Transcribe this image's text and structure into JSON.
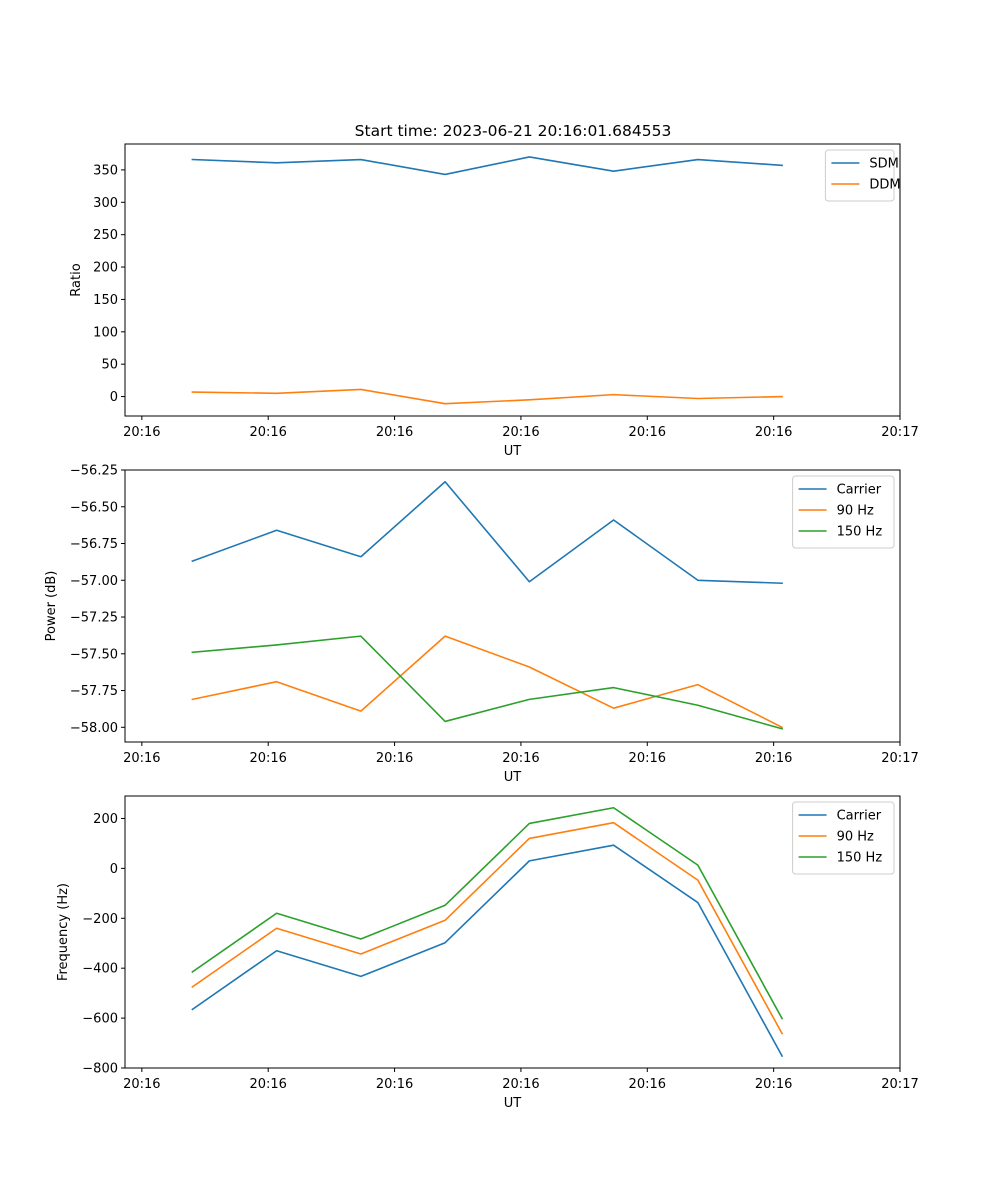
{
  "figure": {
    "title": "Start time: 2023-06-21 20:16:01.684553"
  },
  "colors": {
    "blue": "#1f77b4",
    "orange": "#ff7f0e",
    "green": "#2ca02c"
  },
  "chart_data": [
    {
      "type": "line",
      "title": "Start time: 2023-06-21 20:16:01.684553",
      "xlabel": "UT",
      "ylabel": "Ratio",
      "x": [
        1,
        2,
        3,
        4,
        5,
        6,
        7,
        8
      ],
      "xlim": [
        0.2,
        9.4
      ],
      "xticks": [
        0.4,
        1.9,
        3.4,
        4.9,
        6.4,
        7.9,
        9.4
      ],
      "xtick_labels": [
        "20:16",
        "20:16",
        "20:16",
        "20:16",
        "20:16",
        "20:16",
        "20:17"
      ],
      "ylim": [
        -30,
        390
      ],
      "yticks": [
        0,
        50,
        100,
        150,
        200,
        250,
        300,
        350
      ],
      "ytick_labels": [
        "0",
        "50",
        "100",
        "150",
        "200",
        "250",
        "300",
        "350"
      ],
      "legend": "top-right",
      "grid": false,
      "series": [
        {
          "name": "SDM",
          "color": "#1f77b4",
          "values": [
            366,
            361,
            366,
            343,
            370,
            348,
            366,
            357
          ]
        },
        {
          "name": "DDM",
          "color": "#ff7f0e",
          "values": [
            7,
            5,
            11,
            -11,
            -5,
            3,
            -3,
            0
          ]
        }
      ]
    },
    {
      "type": "line",
      "xlabel": "UT",
      "ylabel": "Power (dB)",
      "x": [
        1,
        2,
        3,
        4,
        5,
        6,
        7,
        8
      ],
      "xlim": [
        0.2,
        9.4
      ],
      "xticks": [
        0.4,
        1.9,
        3.4,
        4.9,
        6.4,
        7.9,
        9.4
      ],
      "xtick_labels": [
        "20:16",
        "20:16",
        "20:16",
        "20:16",
        "20:16",
        "20:16",
        "20:17"
      ],
      "ylim": [
        -58.1,
        -56.25
      ],
      "yticks": [
        -58.0,
        -57.75,
        -57.5,
        -57.25,
        -57.0,
        -56.75,
        -56.5,
        -56.25
      ],
      "ytick_labels": [
        "−58.00",
        "−57.75",
        "−57.50",
        "−57.25",
        "−57.00",
        "−56.75",
        "−56.50",
        "−56.25"
      ],
      "legend": "top-right",
      "grid": false,
      "series": [
        {
          "name": "Carrier",
          "color": "#1f77b4",
          "values": [
            -56.87,
            -56.66,
            -56.84,
            -56.33,
            -57.01,
            -56.59,
            -57.0,
            -57.02
          ]
        },
        {
          "name": "90 Hz",
          "color": "#ff7f0e",
          "values": [
            -57.81,
            -57.69,
            -57.89,
            -57.38,
            -57.59,
            -57.87,
            -57.71,
            -58.0
          ]
        },
        {
          "name": "150 Hz",
          "color": "#2ca02c",
          "values": [
            -57.49,
            -57.44,
            -57.38,
            -57.96,
            -57.81,
            -57.73,
            -57.85,
            -58.01
          ]
        }
      ]
    },
    {
      "type": "line",
      "xlabel": "UT",
      "ylabel": "Frequency (Hz)",
      "x": [
        1,
        2,
        3,
        4,
        5,
        6,
        7,
        8
      ],
      "xlim": [
        0.2,
        9.4
      ],
      "xticks": [
        0.4,
        1.9,
        3.4,
        4.9,
        6.4,
        7.9,
        9.4
      ],
      "xtick_labels": [
        "20:16",
        "20:16",
        "20:16",
        "20:16",
        "20:16",
        "20:16",
        "20:17"
      ],
      "ylim": [
        -800,
        290
      ],
      "yticks": [
        -800,
        -600,
        -400,
        -200,
        0,
        200
      ],
      "ytick_labels": [
        "−800",
        "−600",
        "−400",
        "−200",
        "0",
        "200"
      ],
      "legend": "top-right",
      "grid": false,
      "series": [
        {
          "name": "Carrier",
          "color": "#1f77b4",
          "values": [
            -565,
            -330,
            -433,
            -298,
            30,
            93,
            -137,
            -752
          ]
        },
        {
          "name": "90 Hz",
          "color": "#ff7f0e",
          "values": [
            -475,
            -240,
            -343,
            -208,
            120,
            183,
            -47,
            -662
          ]
        },
        {
          "name": "150 Hz",
          "color": "#2ca02c",
          "values": [
            -415,
            -180,
            -283,
            -148,
            180,
            243,
            13,
            -602
          ]
        }
      ]
    }
  ]
}
